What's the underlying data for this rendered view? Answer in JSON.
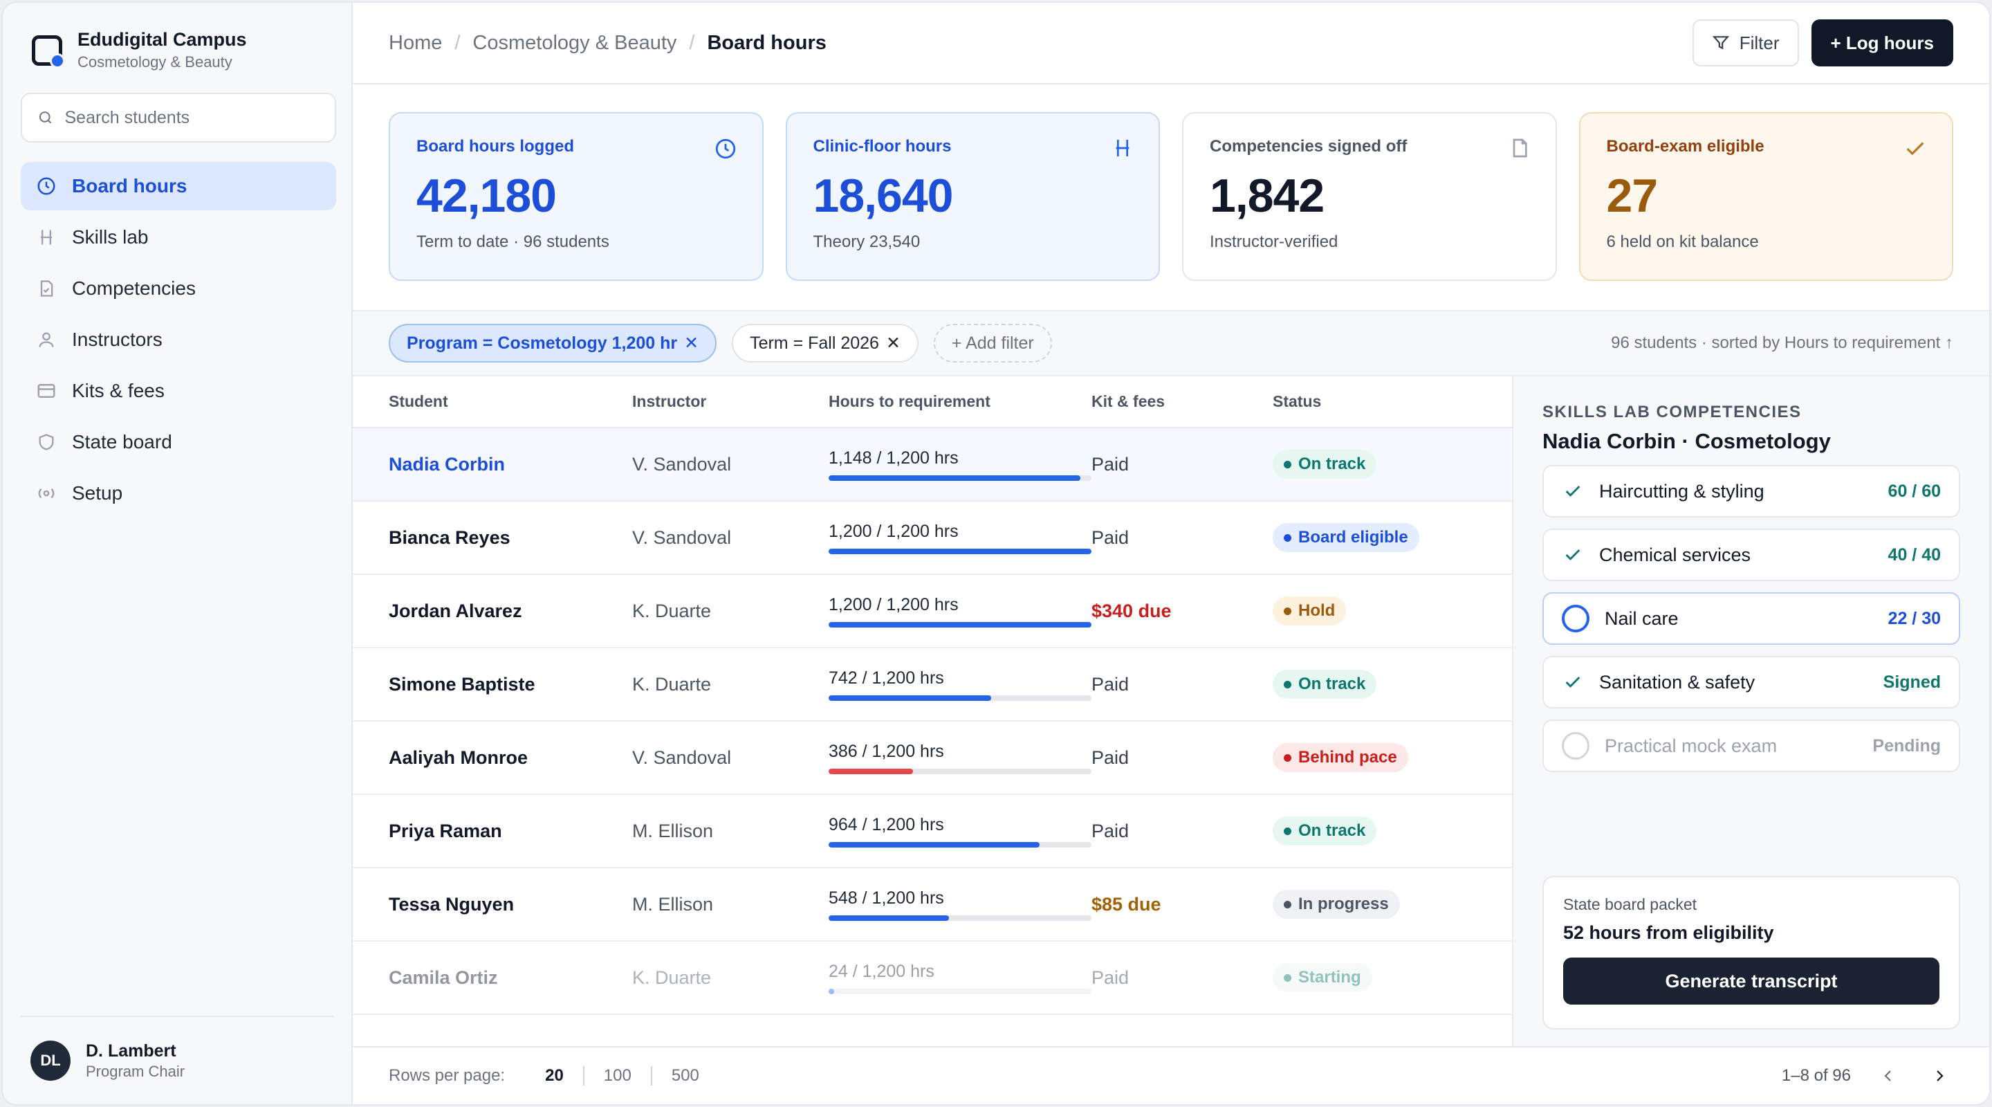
{
  "brand": {
    "name": "Edudigital Campus",
    "subtitle": "Cosmetology & Beauty"
  },
  "search": {
    "placeholder": "Search students"
  },
  "nav": [
    {
      "label": "Board hours",
      "icon": "clock-icon",
      "active": true
    },
    {
      "label": "Skills lab",
      "icon": "chair-icon"
    },
    {
      "label": "Competencies",
      "icon": "checklist-icon"
    },
    {
      "label": "Instructors",
      "icon": "person-icon"
    },
    {
      "label": "Kits & fees",
      "icon": "card-icon"
    },
    {
      "label": "State board",
      "icon": "shield-icon"
    },
    {
      "label": "Setup",
      "icon": "settings-icon"
    }
  ],
  "user": {
    "initials": "DL",
    "name": "D. Lambert",
    "role": "Program Chair"
  },
  "breadcrumb": [
    "Home",
    "Cosmetology & Beauty",
    "Board hours"
  ],
  "actions": {
    "filter": "Filter",
    "log": "+ Log hours"
  },
  "cards": [
    {
      "label": "Board hours logged",
      "value": "42,180",
      "sub": "Term to date · 96 students",
      "icon": "clock-icon"
    },
    {
      "label": "Clinic-floor hours",
      "value": "18,640",
      "sub": "Theory 23,540",
      "icon": "chair-icon"
    },
    {
      "label": "Competencies signed off",
      "value": "1,842",
      "sub": "Instructor-verified",
      "icon": "document-icon"
    },
    {
      "label": "Board-exam eligible",
      "value": "27",
      "sub": "6 held on kit balance",
      "icon": "check-icon"
    }
  ],
  "filters": {
    "chips": [
      "Program = Cosmetology 1,200 hr",
      "Term = Fall 2026"
    ],
    "add": "+ Add filter",
    "meta": "96 students · sorted by Hours to requirement ↑"
  },
  "table": {
    "headers": [
      "Student",
      "Instructor",
      "Hours to requirement",
      "Kit & fees",
      "Status"
    ],
    "rows": [
      {
        "student": "Nadia Corbin",
        "instructor": "V. Sandoval",
        "hours": "1,148 / 1,200 hrs",
        "progress": 0.957,
        "fees": "Paid",
        "status": "On track"
      },
      {
        "student": "Bianca Reyes",
        "instructor": "V. Sandoval",
        "hours": "1,200 / 1,200 hrs",
        "progress": 1.0,
        "fees": "Paid",
        "status": "Board eligible"
      },
      {
        "student": "Jordan Alvarez",
        "instructor": "K. Duarte",
        "hours": "1,200 / 1,200 hrs",
        "progress": 1.0,
        "fees": "$340 due",
        "status": "Hold"
      },
      {
        "student": "Simone Baptiste",
        "instructor": "K. Duarte",
        "hours": "742 / 1,200 hrs",
        "progress": 0.618,
        "fees": "Paid",
        "status": "On track"
      },
      {
        "student": "Aaliyah Monroe",
        "instructor": "V. Sandoval",
        "hours": "386 / 1,200 hrs",
        "progress": 0.322,
        "fees": "Paid",
        "status": "Behind pace"
      },
      {
        "student": "Priya Raman",
        "instructor": "M. Ellison",
        "hours": "964 / 1,200 hrs",
        "progress": 0.803,
        "fees": "Paid",
        "status": "On track"
      },
      {
        "student": "Tessa Nguyen",
        "instructor": "M. Ellison",
        "hours": "548 / 1,200 hrs",
        "progress": 0.457,
        "fees": "$85 due",
        "status": "In progress"
      },
      {
        "student": "Camila Ortiz",
        "instructor": "K. Duarte",
        "hours": "24 / 1,200 hrs",
        "progress": 0.02,
        "fees": "Paid",
        "status": "Starting"
      }
    ]
  },
  "pager": {
    "label": "Rows per page:",
    "options": [
      "20",
      "100",
      "500"
    ],
    "range": "1–8 of 96"
  },
  "panel": {
    "kicker": "SKILLS LAB COMPETENCIES",
    "title": "Nadia Corbin · Cosmetology",
    "items": [
      {
        "label": "Haircutting & styling",
        "count": "60 / 60"
      },
      {
        "label": "Chemical services",
        "count": "40 / 40"
      },
      {
        "label": "Nail care",
        "count": "22 / 30"
      },
      {
        "label": "Sanitation & safety",
        "count": "Signed"
      },
      {
        "label": "Practical mock exam",
        "count": "Pending"
      }
    ],
    "packet": {
      "label": "State board packet",
      "value": "52 hours from eligibility",
      "button": "Generate transcript"
    }
  }
}
